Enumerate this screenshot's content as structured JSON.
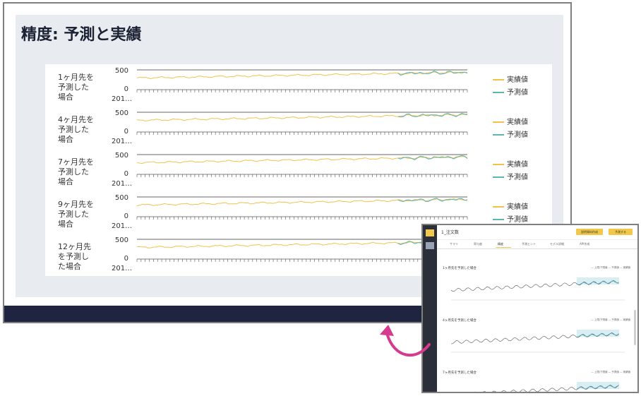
{
  "slide": {
    "title": "精度: 予測と実績"
  },
  "chart_data": {
    "type": "line",
    "series": [
      {
        "name": "実績値",
        "color": "#f2c14e"
      },
      {
        "name": "予測値",
        "color": "#5fb6b0"
      }
    ],
    "ylim": [
      0,
      500
    ],
    "yticks": [
      "500",
      "0"
    ],
    "xtick_label": "201…",
    "rows": [
      {
        "label": "1ヶ月先を\n予測した\n場合"
      },
      {
        "label": "4ヶ月先を\n予測した\n場合"
      },
      {
        "label": "7ヶ月先を\n予測した\n場合"
      },
      {
        "label": "9ヶ月先を\n予測した\n場合"
      },
      {
        "label": "12ヶ月先\nを予測し\nた場合"
      }
    ]
  },
  "inset": {
    "app_title": "1_注文数",
    "buttons": [
      "説明資料作成",
      "予測する"
    ],
    "tabs": [
      "サマリ",
      "寄与度",
      "精度",
      "予測ヒント",
      "モデル詳細",
      "API作成"
    ],
    "sections": [
      {
        "title": "1ヶ月先を予測した場合",
        "legend": "— 上限/下限値   — 予測値   — 実績値"
      },
      {
        "title": "4ヶ月先を予測した場合",
        "legend": "— 上限/下限値   — 予測値   — 実績値"
      },
      {
        "title": "7ヶ月先を予測した場合",
        "legend": "— 上限/下限値   — 予測値   — 実績値"
      }
    ]
  }
}
